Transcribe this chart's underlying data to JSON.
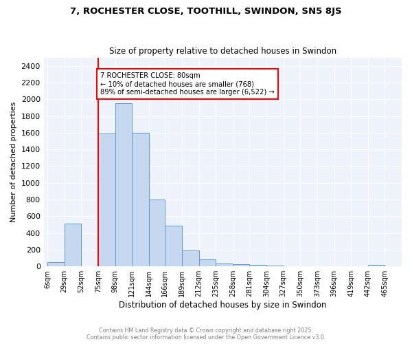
{
  "title": "7, ROCHESTER CLOSE, TOOTHILL, SWINDON, SN5 8JS",
  "subtitle": "Size of property relative to detached houses in Swindon",
  "xlabel": "Distribution of detached houses by size in Swindon",
  "ylabel": "Number of detached properties",
  "bar_color": "#c5d8f0",
  "bar_edge_color": "#5b9bd5",
  "bin_edges": [
    6,
    29,
    52,
    75,
    98,
    121,
    144,
    166,
    189,
    212,
    235,
    258,
    281,
    304,
    327,
    350,
    373,
    396,
    419,
    442,
    465
  ],
  "bin_labels": [
    "6sqm",
    "29sqm",
    "52sqm",
    "75sqm",
    "98sqm",
    "121sqm",
    "144sqm",
    "166sqm",
    "189sqm",
    "212sqm",
    "235sqm",
    "258sqm",
    "281sqm",
    "304sqm",
    "327sqm",
    "350sqm",
    "373sqm",
    "396sqm",
    "419sqm",
    "442sqm",
    "465sqm"
  ],
  "bar_heights": [
    50,
    510,
    0,
    1590,
    1950,
    1600,
    800,
    490,
    195,
    85,
    35,
    25,
    15,
    10,
    5,
    0,
    0,
    0,
    0,
    20
  ],
  "ylim": [
    0,
    2500
  ],
  "yticks": [
    0,
    200,
    400,
    600,
    800,
    1000,
    1200,
    1400,
    1600,
    1800,
    2000,
    2200,
    2400
  ],
  "red_line_x_label": "75sqm",
  "annotation_text": "7 ROCHESTER CLOSE: 80sqm\n← 10% of detached houses are smaller (768)\n89% of semi-detached houses are larger (6,522) →",
  "annotation_box_color": "white",
  "annotation_box_edge_color": "red",
  "footer_text": "Contains HM Land Registry data © Crown copyright and database right 2025.\nContains public sector information licensed under the Open Government Licence v3.0.",
  "background_color": "#eef3fb",
  "grid_color": "white"
}
